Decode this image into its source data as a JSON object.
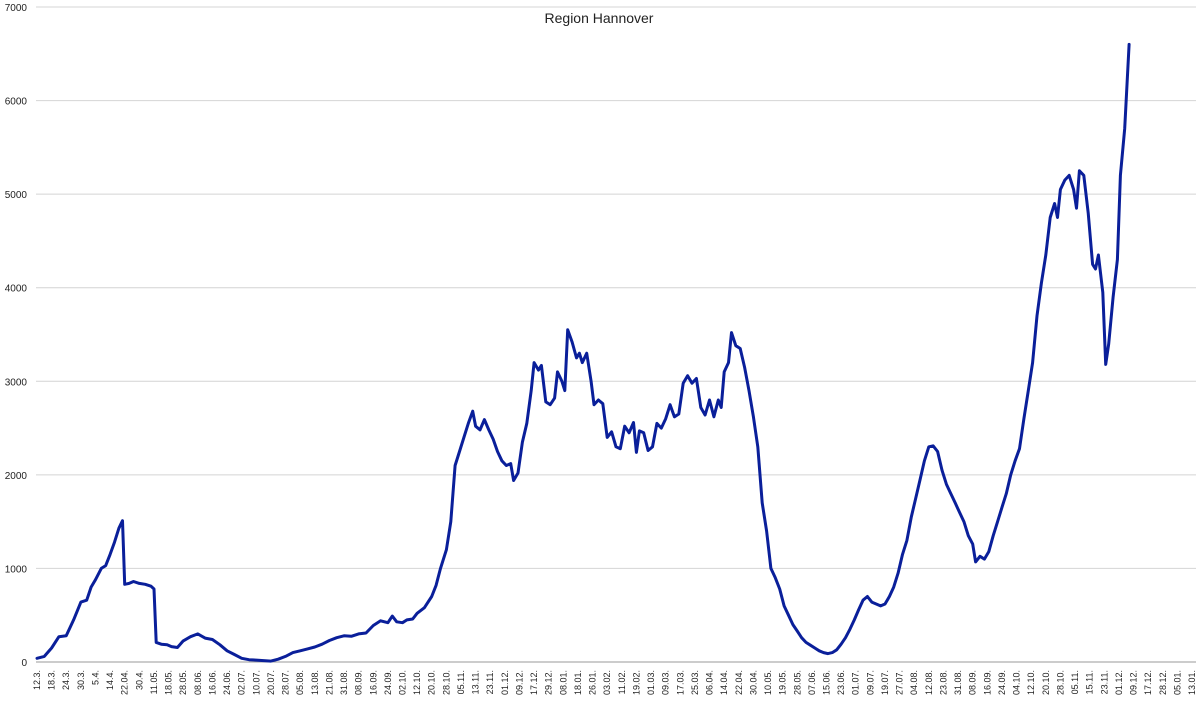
{
  "chart_data": {
    "type": "line",
    "title": "Region Hannover",
    "xlabel": "",
    "ylabel": "",
    "ylim": [
      0,
      7000
    ],
    "yticks": [
      "0",
      "1000",
      "2000",
      "3000",
      "4000",
      "5000",
      "6000",
      "7000"
    ],
    "grid": true,
    "legend": "none",
    "xtick_labels": [
      "12.3.",
      "18.3.",
      "24.3.",
      "30.3.",
      "5.4.",
      "14.4.",
      "22.04.",
      "30.4.",
      "11.05.",
      "18.05.",
      "28.05.",
      "08.06.",
      "16.06.",
      "24.06.",
      "02.07.",
      "10.07.",
      "20.07.",
      "28.07.",
      "05.08.",
      "13.08.",
      "21.08.",
      "31.08.",
      "08.09.",
      "16.09.",
      "24.09.",
      "02.10.",
      "12.10.",
      "20.10.",
      "28.10.",
      "05.11.",
      "13.11.",
      "23.11.",
      "01.12.",
      "09.12.",
      "17.12.",
      "29.12.",
      "08.01.",
      "18.01.",
      "26.01.",
      "03.02.",
      "11.02.",
      "19.02.",
      "01.03.",
      "09.03.",
      "17.03.",
      "25.03.",
      "06.04.",
      "14.04.",
      "22.04.",
      "30.04.",
      "10.05.",
      "19.05.",
      "28.05.",
      "07.06.",
      "15.06.",
      "23.06.",
      "01.07.",
      "09.07.",
      "19.07.",
      "27.07.",
      "04.08.",
      "12.08.",
      "23.08.",
      "31.08.",
      "08.09.",
      "16.09.",
      "24.09.",
      "04.10.",
      "12.10.",
      "20.10.",
      "28.10.",
      "05.11.",
      "15.11.",
      "23.11.",
      "01.12.",
      "09.12.",
      "17.12.",
      "28.12.",
      "05.01.",
      "13.01."
    ],
    "series": [
      {
        "color": "#0a1f9a",
        "points": [
          [
            0,
            40
          ],
          [
            0.5,
            60
          ],
          [
            1,
            150
          ],
          [
            1.5,
            270
          ],
          [
            2,
            280
          ],
          [
            2.5,
            450
          ],
          [
            3,
            640
          ],
          [
            3.4,
            660
          ],
          [
            3.7,
            800
          ],
          [
            4,
            880
          ],
          [
            4.4,
            1000
          ],
          [
            4.7,
            1030
          ],
          [
            5,
            1150
          ],
          [
            5.3,
            1280
          ],
          [
            5.6,
            1430
          ],
          [
            5.85,
            1510
          ],
          [
            6,
            830
          ],
          [
            6.3,
            840
          ],
          [
            6.6,
            860
          ],
          [
            7,
            840
          ],
          [
            7.4,
            830
          ],
          [
            7.8,
            810
          ],
          [
            8,
            780
          ],
          [
            8.15,
            210
          ],
          [
            8.5,
            190
          ],
          [
            8.9,
            185
          ],
          [
            9.2,
            165
          ],
          [
            9.6,
            155
          ],
          [
            10,
            225
          ],
          [
            10.5,
            270
          ],
          [
            11,
            300
          ],
          [
            11.5,
            255
          ],
          [
            12,
            240
          ],
          [
            12.5,
            185
          ],
          [
            13,
            120
          ],
          [
            13.5,
            80
          ],
          [
            14,
            40
          ],
          [
            14.5,
            25
          ],
          [
            15,
            20
          ],
          [
            15.5,
            15
          ],
          [
            16,
            10
          ],
          [
            16.5,
            30
          ],
          [
            17,
            60
          ],
          [
            17.5,
            100
          ],
          [
            18,
            120
          ],
          [
            18.5,
            140
          ],
          [
            19,
            160
          ],
          [
            19.5,
            190
          ],
          [
            20,
            230
          ],
          [
            20.5,
            260
          ],
          [
            21,
            280
          ],
          [
            21.5,
            275
          ],
          [
            22,
            300
          ],
          [
            22.5,
            310
          ],
          [
            23,
            390
          ],
          [
            23.5,
            440
          ],
          [
            24,
            420
          ],
          [
            24.3,
            490
          ],
          [
            24.6,
            430
          ],
          [
            25,
            420
          ],
          [
            25.3,
            450
          ],
          [
            25.7,
            460
          ],
          [
            26,
            520
          ],
          [
            26.5,
            580
          ],
          [
            27,
            700
          ],
          [
            27.3,
            820
          ],
          [
            27.6,
            1000
          ],
          [
            28,
            1200
          ],
          [
            28.3,
            1500
          ],
          [
            28.6,
            2100
          ],
          [
            28.9,
            2250
          ],
          [
            29.2,
            2400
          ],
          [
            29.5,
            2550
          ],
          [
            29.8,
            2680
          ],
          [
            30,
            2520
          ],
          [
            30.3,
            2480
          ],
          [
            30.6,
            2590
          ],
          [
            30.9,
            2480
          ],
          [
            31.2,
            2380
          ],
          [
            31.5,
            2250
          ],
          [
            31.8,
            2150
          ],
          [
            32.1,
            2100
          ],
          [
            32.4,
            2120
          ],
          [
            32.6,
            1940
          ],
          [
            32.9,
            2020
          ],
          [
            33.2,
            2350
          ],
          [
            33.5,
            2550
          ],
          [
            33.8,
            2900
          ],
          [
            34,
            3200
          ],
          [
            34.3,
            3120
          ],
          [
            34.5,
            3170
          ],
          [
            34.8,
            2780
          ],
          [
            35.1,
            2750
          ],
          [
            35.4,
            2820
          ],
          [
            35.6,
            3100
          ],
          [
            35.9,
            3000
          ],
          [
            36.1,
            2900
          ],
          [
            36.3,
            3550
          ],
          [
            36.6,
            3420
          ],
          [
            36.9,
            3250
          ],
          [
            37.1,
            3300
          ],
          [
            37.3,
            3200
          ],
          [
            37.6,
            3300
          ],
          [
            37.9,
            3000
          ],
          [
            38.1,
            2750
          ],
          [
            38.4,
            2800
          ],
          [
            38.7,
            2760
          ],
          [
            39,
            2400
          ],
          [
            39.3,
            2460
          ],
          [
            39.6,
            2300
          ],
          [
            39.9,
            2280
          ],
          [
            40.2,
            2520
          ],
          [
            40.5,
            2450
          ],
          [
            40.8,
            2560
          ],
          [
            41,
            2240
          ],
          [
            41.2,
            2470
          ],
          [
            41.5,
            2450
          ],
          [
            41.8,
            2260
          ],
          [
            42.1,
            2300
          ],
          [
            42.4,
            2550
          ],
          [
            42.7,
            2500
          ],
          [
            43,
            2600
          ],
          [
            43.3,
            2750
          ],
          [
            43.6,
            2620
          ],
          [
            43.9,
            2650
          ],
          [
            44.2,
            2980
          ],
          [
            44.5,
            3060
          ],
          [
            44.8,
            2980
          ],
          [
            45.1,
            3030
          ],
          [
            45.4,
            2720
          ],
          [
            45.7,
            2640
          ],
          [
            46,
            2800
          ],
          [
            46.3,
            2620
          ],
          [
            46.6,
            2800
          ],
          [
            46.8,
            2720
          ],
          [
            47,
            3100
          ],
          [
            47.3,
            3200
          ],
          [
            47.5,
            3520
          ],
          [
            47.8,
            3380
          ],
          [
            48.1,
            3350
          ],
          [
            48.4,
            3150
          ],
          [
            48.7,
            2900
          ],
          [
            49,
            2620
          ],
          [
            49.3,
            2300
          ],
          [
            49.6,
            1700
          ],
          [
            49.9,
            1400
          ],
          [
            50.2,
            1000
          ],
          [
            50.5,
            900
          ],
          [
            50.8,
            780
          ],
          [
            51.1,
            600
          ],
          [
            51.4,
            500
          ],
          [
            51.7,
            400
          ],
          [
            52,
            330
          ],
          [
            52.3,
            260
          ],
          [
            52.6,
            210
          ],
          [
            52.9,
            180
          ],
          [
            53.2,
            150
          ],
          [
            53.5,
            120
          ],
          [
            53.8,
            100
          ],
          [
            54.1,
            90
          ],
          [
            54.4,
            100
          ],
          [
            54.7,
            130
          ],
          [
            55,
            190
          ],
          [
            55.3,
            260
          ],
          [
            55.6,
            350
          ],
          [
            55.9,
            450
          ],
          [
            56.2,
            560
          ],
          [
            56.5,
            660
          ],
          [
            56.8,
            700
          ],
          [
            57.1,
            640
          ],
          [
            57.4,
            620
          ],
          [
            57.7,
            600
          ],
          [
            58,
            620
          ],
          [
            58.3,
            700
          ],
          [
            58.6,
            800
          ],
          [
            58.9,
            950
          ],
          [
            59.2,
            1150
          ],
          [
            59.5,
            1300
          ],
          [
            59.8,
            1550
          ],
          [
            60.1,
            1750
          ],
          [
            60.4,
            1950
          ],
          [
            60.7,
            2150
          ],
          [
            61,
            2300
          ],
          [
            61.3,
            2310
          ],
          [
            61.6,
            2250
          ],
          [
            61.9,
            2050
          ],
          [
            62.2,
            1900
          ],
          [
            62.5,
            1800
          ],
          [
            62.8,
            1700
          ],
          [
            63.1,
            1600
          ],
          [
            63.4,
            1500
          ],
          [
            63.7,
            1350
          ],
          [
            64,
            1260
          ],
          [
            64.2,
            1070
          ],
          [
            64.5,
            1130
          ],
          [
            64.8,
            1100
          ],
          [
            65.1,
            1180
          ],
          [
            65.4,
            1350
          ],
          [
            65.7,
            1500
          ],
          [
            66,
            1650
          ],
          [
            66.3,
            1800
          ],
          [
            66.6,
            2000
          ],
          [
            66.9,
            2150
          ],
          [
            67.2,
            2280
          ],
          [
            67.5,
            2600
          ],
          [
            67.8,
            2900
          ],
          [
            68.1,
            3200
          ],
          [
            68.4,
            3700
          ],
          [
            68.7,
            4050
          ],
          [
            69,
            4350
          ],
          [
            69.3,
            4750
          ],
          [
            69.6,
            4900
          ],
          [
            69.8,
            4750
          ],
          [
            70,
            5050
          ],
          [
            70.3,
            5150
          ],
          [
            70.6,
            5200
          ],
          [
            70.9,
            5050
          ],
          [
            71.1,
            4850
          ],
          [
            71.3,
            5250
          ],
          [
            71.6,
            5200
          ],
          [
            71.9,
            4800
          ],
          [
            72.2,
            4250
          ],
          [
            72.4,
            4200
          ],
          [
            72.6,
            4350
          ],
          [
            72.9,
            3950
          ],
          [
            73.1,
            3180
          ],
          [
            73.3,
            3400
          ],
          [
            73.6,
            3900
          ],
          [
            73.9,
            4300
          ],
          [
            74.1,
            5200
          ],
          [
            74.4,
            5700
          ],
          [
            74.7,
            6600
          ]
        ]
      }
    ]
  }
}
